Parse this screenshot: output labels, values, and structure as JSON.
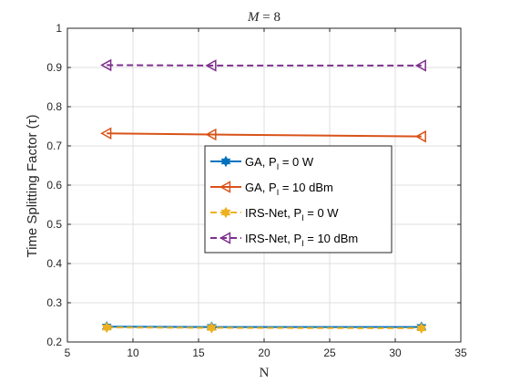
{
  "chart_data": {
    "type": "line",
    "title": "M = 8",
    "xlabel": "N",
    "ylabel": "Time Splitting Factor (τ)",
    "x": [
      8,
      16,
      32
    ],
    "xlim": [
      5,
      35
    ],
    "ylim": [
      0.2,
      1
    ],
    "xticks": [
      5,
      10,
      15,
      20,
      25,
      30,
      35
    ],
    "yticks": [
      0.2,
      0.3,
      0.4,
      0.5,
      0.6,
      0.7,
      0.8,
      0.9,
      1
    ],
    "grid": true,
    "legend_position": "center",
    "series": [
      {
        "name": "GA, P_I = 0 W",
        "legend_main": "GA, P",
        "legend_sub": "I",
        "legend_tail": " = 0 W",
        "values": [
          0.239,
          0.238,
          0.238
        ],
        "color": "#0072BD",
        "dash": "solid",
        "marker": "hexagram"
      },
      {
        "name": "GA, P_I = 10 dBm",
        "legend_main": "GA, P",
        "legend_sub": "I",
        "legend_tail": " = 10 dBm",
        "values": [
          0.732,
          0.729,
          0.724
        ],
        "color": "#D95319",
        "dash": "solid",
        "marker": "triangle-left"
      },
      {
        "name": "IRS-Net, P_I = 0 W",
        "legend_main": "IRS-Net, P",
        "legend_sub": "I",
        "legend_tail": " = 0 W",
        "values": [
          0.237,
          0.236,
          0.235
        ],
        "color": "#EDB120",
        "dash": "dashed",
        "marker": "hexagram"
      },
      {
        "name": "IRS-Net, P_I = 10 dBm",
        "legend_main": "IRS-Net, P",
        "legend_sub": "I",
        "legend_tail": " = 10 dBm",
        "values": [
          0.906,
          0.905,
          0.905
        ],
        "color": "#7E2F8E",
        "dash": "dashed",
        "marker": "triangle-left"
      }
    ]
  }
}
